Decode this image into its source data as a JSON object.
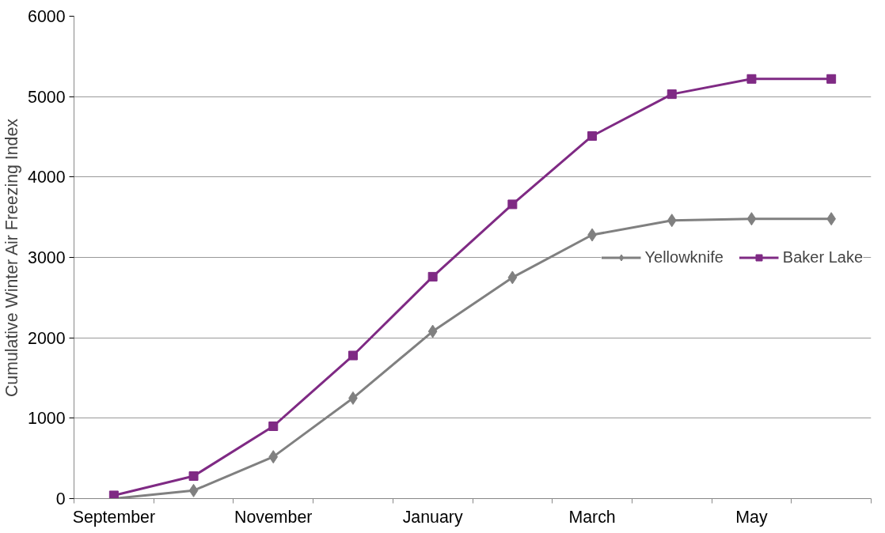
{
  "chart_data": {
    "type": "line",
    "ylabel": "Cumulative Winter Air Freezing Index",
    "categories": [
      "September",
      null,
      "November",
      null,
      "January",
      null,
      "March",
      null,
      "May",
      null
    ],
    "series": [
      {
        "name": "Yellowknife",
        "color": "#808080",
        "marker": "diamond",
        "values": [
          0,
          100,
          520,
          1250,
          2080,
          2750,
          3280,
          3460,
          3480,
          3480
        ]
      },
      {
        "name": "Baker Lake",
        "color": "#7f2a84",
        "marker": "square",
        "values": [
          40,
          280,
          900,
          1780,
          2760,
          3660,
          4510,
          5030,
          5220,
          5220
        ]
      }
    ],
    "ylim": [
      0,
      6000
    ],
    "yticks": [
      0,
      1000,
      2000,
      3000,
      4000,
      5000,
      6000
    ],
    "grid": "y",
    "legend": "right",
    "line_style": "solid"
  }
}
